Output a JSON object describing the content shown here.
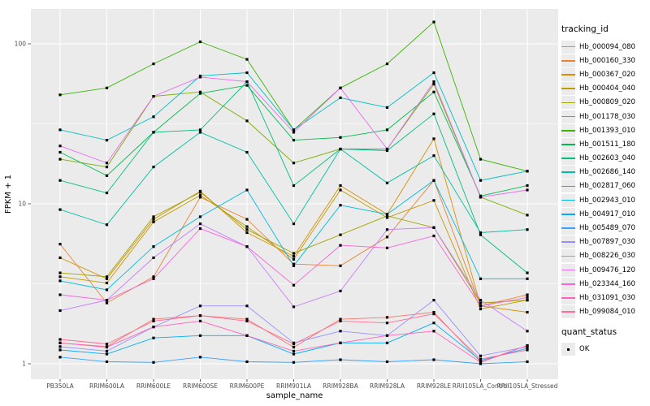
{
  "figure": {
    "y_axis_title": "FPKM + 1",
    "x_axis_title": "sample_name",
    "legend_tracking_title": "tracking_id",
    "legend_quant_title": "quant_status",
    "quant_status_value": "OK"
  },
  "colors": {
    "panel_background": "#ebebeb",
    "gridline": "#ffffff",
    "tick_text": "#4d4d4d",
    "axis_title_text": "#000000",
    "point_marker": "#000000",
    "legend_key_background": "#ebebeb"
  },
  "chart_data": {
    "type": "line",
    "title": "",
    "xlabel": "sample_name",
    "ylabel": "FPKM + 1",
    "y_scale": "log10",
    "ylim": [
      0.8,
      170
    ],
    "y_major_ticks": [
      1,
      10,
      100
    ],
    "y_minor_gridlines": [
      3.162,
      31.62
    ],
    "grid": true,
    "legend_position": "right",
    "legend_title": "tracking_id",
    "secondary_legend": {
      "title": "quant_status",
      "items": [
        {
          "label": "OK",
          "marker": "black-filled-square"
        }
      ]
    },
    "point_marker": "black-filled-square",
    "categories": [
      "PB350LA",
      "RRIM600LA",
      "RRIM600LE",
      "RRIM600SE",
      "RRIM600PE",
      "RRIM901LA",
      "RRIM928BA",
      "RRIM928LA",
      "RRIM928LE",
      "RRII105LA_Control",
      "RRII105LA_Stressed"
    ],
    "series": [
      {
        "name": "Hb_000094_080",
        "color": "#F8766D",
        "values": [
          1.35,
          1.28,
          1.9,
          2.0,
          1.9,
          1.27,
          1.9,
          1.95,
          2.1,
          1.03,
          1.3
        ]
      },
      {
        "name": "Hb_000160_330",
        "color": "#EA8331",
        "values": [
          5.6,
          2.4,
          3.5,
          11.0,
          8.0,
          4.2,
          4.1,
          6.2,
          14.0,
          2.3,
          2.7
        ]
      },
      {
        "name": "Hb_000367_020",
        "color": "#D89000",
        "values": [
          4.6,
          3.4,
          8.0,
          12.0,
          6.6,
          4.7,
          13.0,
          8.6,
          25.5,
          2.3,
          2.1
        ]
      },
      {
        "name": "Hb_000404_040",
        "color": "#C09B00",
        "values": [
          3.5,
          3.2,
          7.7,
          11.3,
          7.2,
          4.5,
          12.2,
          8.2,
          10.5,
          2.2,
          2.5
        ]
      },
      {
        "name": "Hb_000809_020",
        "color": "#A3A500",
        "values": [
          3.7,
          3.5,
          8.3,
          11.8,
          6.9,
          4.9,
          6.4,
          8.4,
          7.1,
          2.4,
          2.5
        ]
      },
      {
        "name": "Hb_001178_030",
        "color": "#7CAE00",
        "values": [
          19,
          17,
          47,
          50,
          33,
          18,
          22,
          22,
          56,
          11,
          8.5
        ]
      },
      {
        "name": "Hb_001393_010",
        "color": "#39B600",
        "values": [
          48,
          53,
          75,
          103,
          80,
          29,
          53,
          75,
          137,
          19,
          16
        ]
      },
      {
        "name": "Hb_001511_180",
        "color": "#00BB4E",
        "values": [
          21,
          15,
          28,
          49,
          55,
          25,
          26,
          29,
          50,
          11.2,
          13
        ]
      },
      {
        "name": "Hb_002603_040",
        "color": "#00BF7D",
        "values": [
          14,
          11.7,
          28,
          29,
          58,
          13,
          22,
          21.5,
          36.5,
          6.4,
          3.7
        ]
      },
      {
        "name": "Hb_002686_140",
        "color": "#00C1A3",
        "values": [
          9.2,
          7.4,
          17,
          28,
          21,
          7.5,
          22,
          13.5,
          20,
          6.6,
          6.9
        ]
      },
      {
        "name": "Hb_002817_060",
        "color": "#00BFC4",
        "values": [
          29,
          25,
          35,
          63,
          66,
          29,
          46,
          40,
          66,
          14,
          16
        ]
      },
      {
        "name": "Hb_002943_010",
        "color": "#00BAE0",
        "values": [
          3.3,
          2.9,
          5.4,
          8.3,
          12.2,
          4.1,
          9.8,
          8.6,
          14.0,
          3.4,
          3.4
        ]
      },
      {
        "name": "Hb_004917_010",
        "color": "#00B0F6",
        "values": [
          1.22,
          1.15,
          1.45,
          1.5,
          1.5,
          1.15,
          1.35,
          1.35,
          1.8,
          1.05,
          1.25
        ]
      },
      {
        "name": "Hb_005489_070",
        "color": "#35A2FF",
        "values": [
          1.1,
          1.03,
          1.02,
          1.1,
          1.03,
          1.02,
          1.06,
          1.03,
          1.06,
          1.0,
          1.03
        ]
      },
      {
        "name": "Hb_007897_030",
        "color": "#9590FF",
        "values": [
          1.28,
          1.2,
          1.7,
          2.3,
          2.3,
          1.35,
          1.6,
          1.5,
          2.5,
          1.12,
          1.28
        ]
      },
      {
        "name": "Hb_008226_030",
        "color": "#C77CFF",
        "values": [
          2.15,
          2.5,
          4.6,
          7.5,
          5.4,
          2.27,
          2.85,
          6.9,
          7.1,
          2.5,
          1.6
        ]
      },
      {
        "name": "Hb_009476_120",
        "color": "#E76BF3",
        "values": [
          23,
          18,
          47,
          62,
          58,
          28,
          53,
          22,
          58,
          11,
          12.2
        ]
      },
      {
        "name": "Hb_023344_160",
        "color": "#FA62DB",
        "values": [
          2.7,
          2.5,
          3.4,
          7.0,
          5.4,
          3.1,
          5.5,
          5.3,
          6.3,
          2.3,
          2.6
        ]
      },
      {
        "name": "Hb_031091_030",
        "color": "#FF62BC",
        "values": [
          1.35,
          1.27,
          1.7,
          1.85,
          1.5,
          1.2,
          1.35,
          1.5,
          1.6,
          1.02,
          1.3
        ]
      },
      {
        "name": "Hb_099084_010",
        "color": "#FF6A98",
        "values": [
          1.42,
          1.33,
          1.85,
          2.0,
          1.85,
          1.33,
          1.85,
          1.8,
          2.05,
          1.07,
          1.22
        ]
      }
    ]
  }
}
